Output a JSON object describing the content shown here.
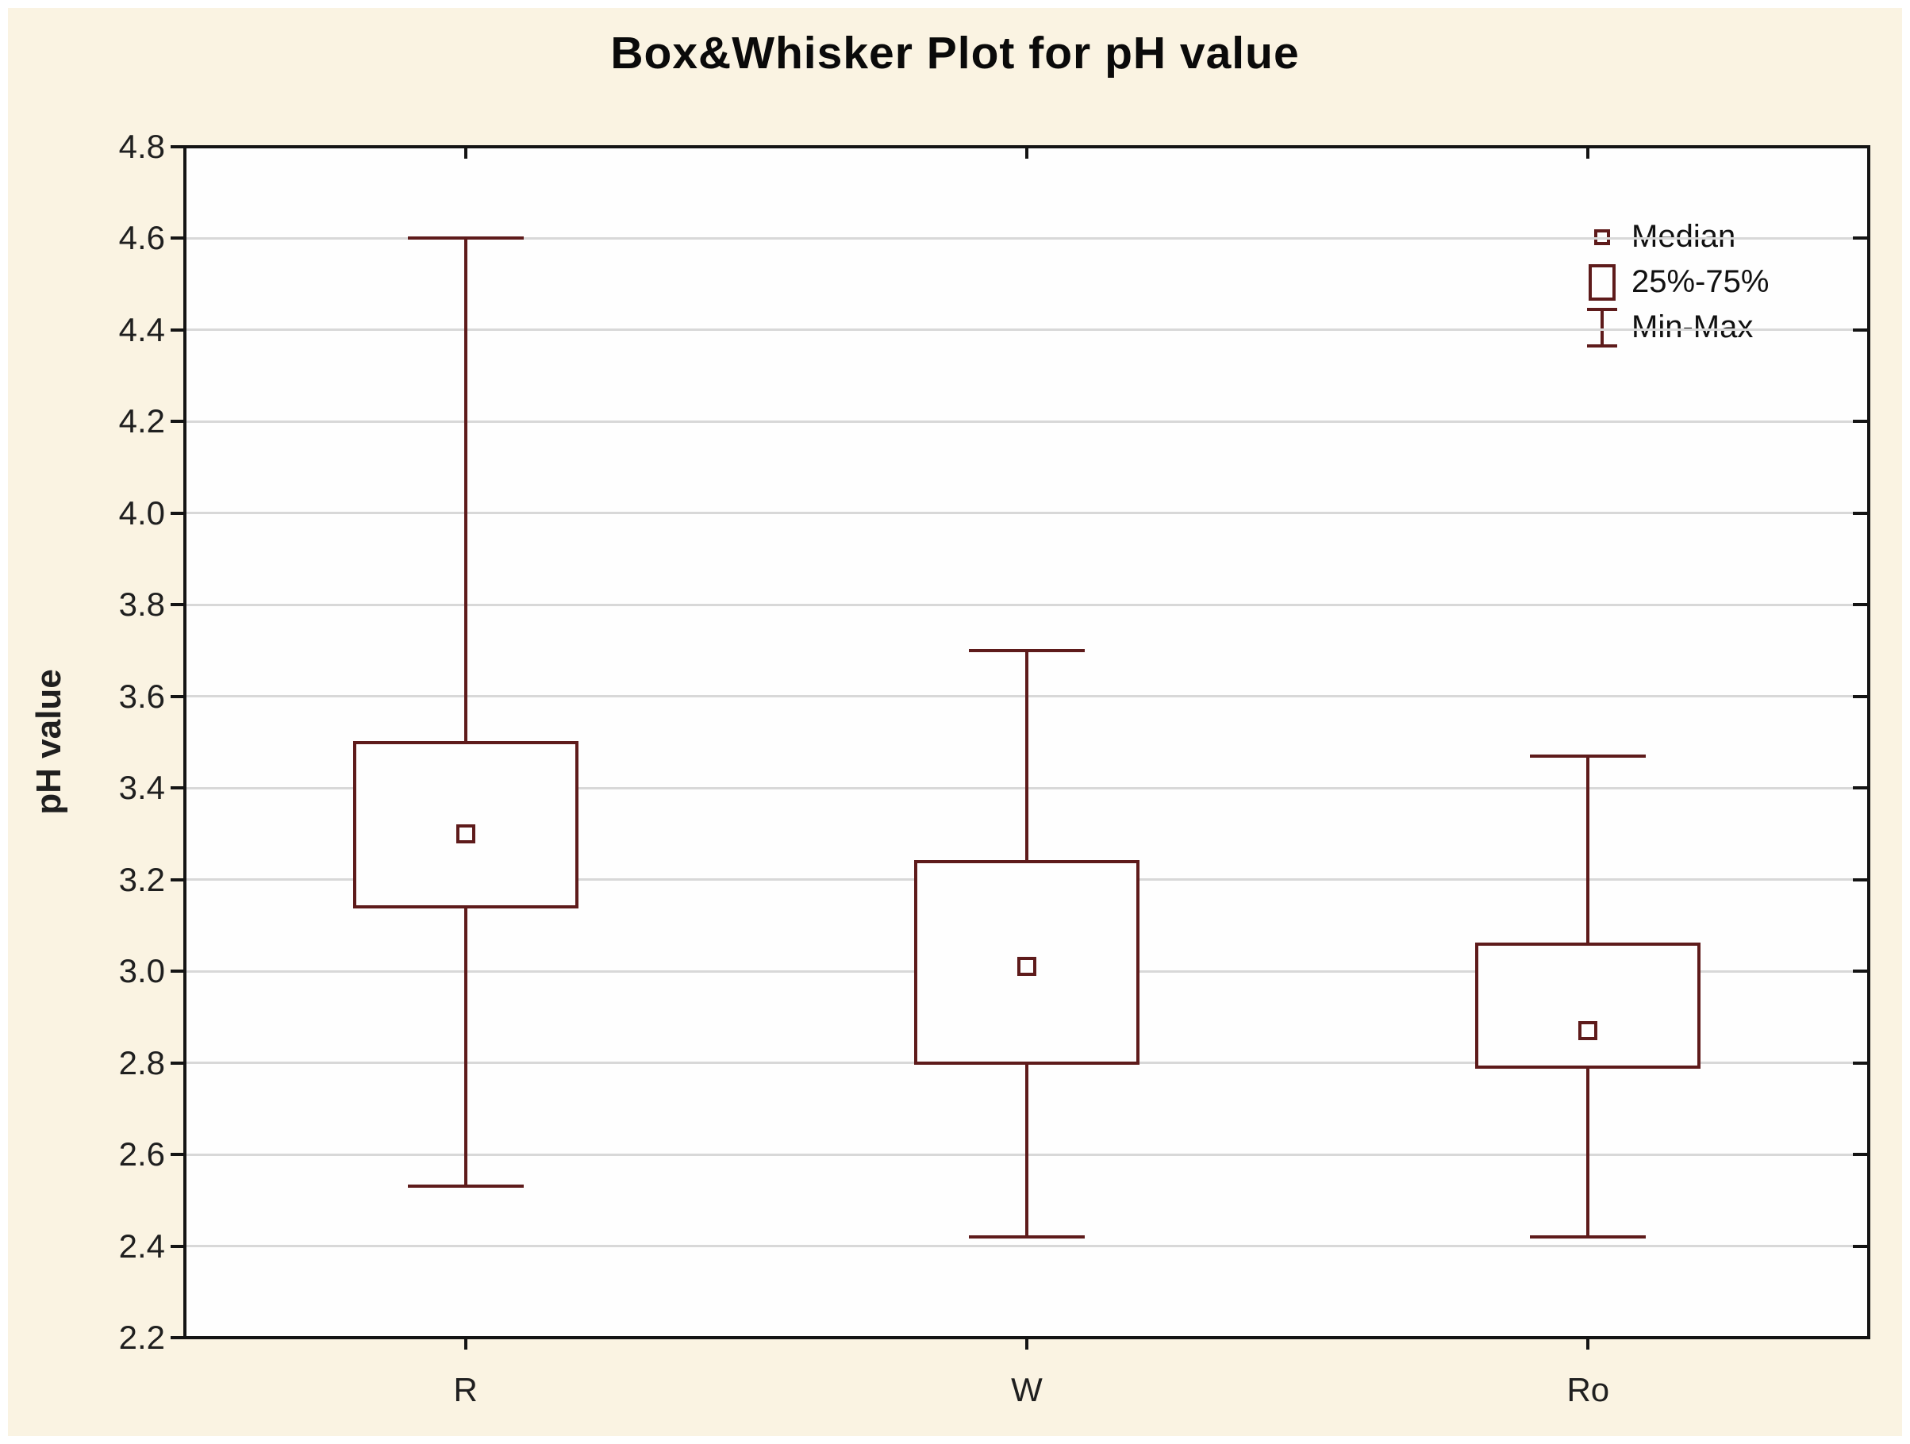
{
  "chart_data": {
    "type": "boxplot",
    "title": "Box&Whisker Plot for pH value",
    "ylabel": "pH value",
    "xlabel": "",
    "categories": [
      "R",
      "W",
      "Ro"
    ],
    "ylim": [
      2.2,
      4.8
    ],
    "ytick_step": 0.2,
    "yticks": [
      "4.8",
      "4.6",
      "4.4",
      "4.2",
      "4.0",
      "3.8",
      "3.6",
      "3.4",
      "3.2",
      "3.0",
      "2.8",
      "2.6",
      "2.4",
      "2.2"
    ],
    "grid": "horizontal-light",
    "legend_position": "top-right-inside",
    "legend": [
      {
        "symbol": "median-square",
        "label": "Median"
      },
      {
        "symbol": "box-25-75",
        "label": "25%-75%"
      },
      {
        "symbol": "min-max-whisker",
        "label": "Min-Max"
      }
    ],
    "series": [
      {
        "category": "R",
        "min": 2.53,
        "q1": 3.14,
        "median": 3.3,
        "q3": 3.5,
        "max": 4.6
      },
      {
        "category": "W",
        "min": 2.42,
        "q1": 2.8,
        "median": 3.01,
        "q3": 3.24,
        "max": 3.7
      },
      {
        "category": "Ro",
        "min": 2.42,
        "q1": 2.79,
        "median": 2.87,
        "q3": 3.06,
        "max": 3.47
      }
    ]
  },
  "colors": {
    "background": "#faf3e2",
    "plot_background": "#fefefe",
    "axis": "#141414",
    "gridline": "#d8d8d8",
    "box": "#5e1b1b",
    "text": "#1f1f1f"
  }
}
